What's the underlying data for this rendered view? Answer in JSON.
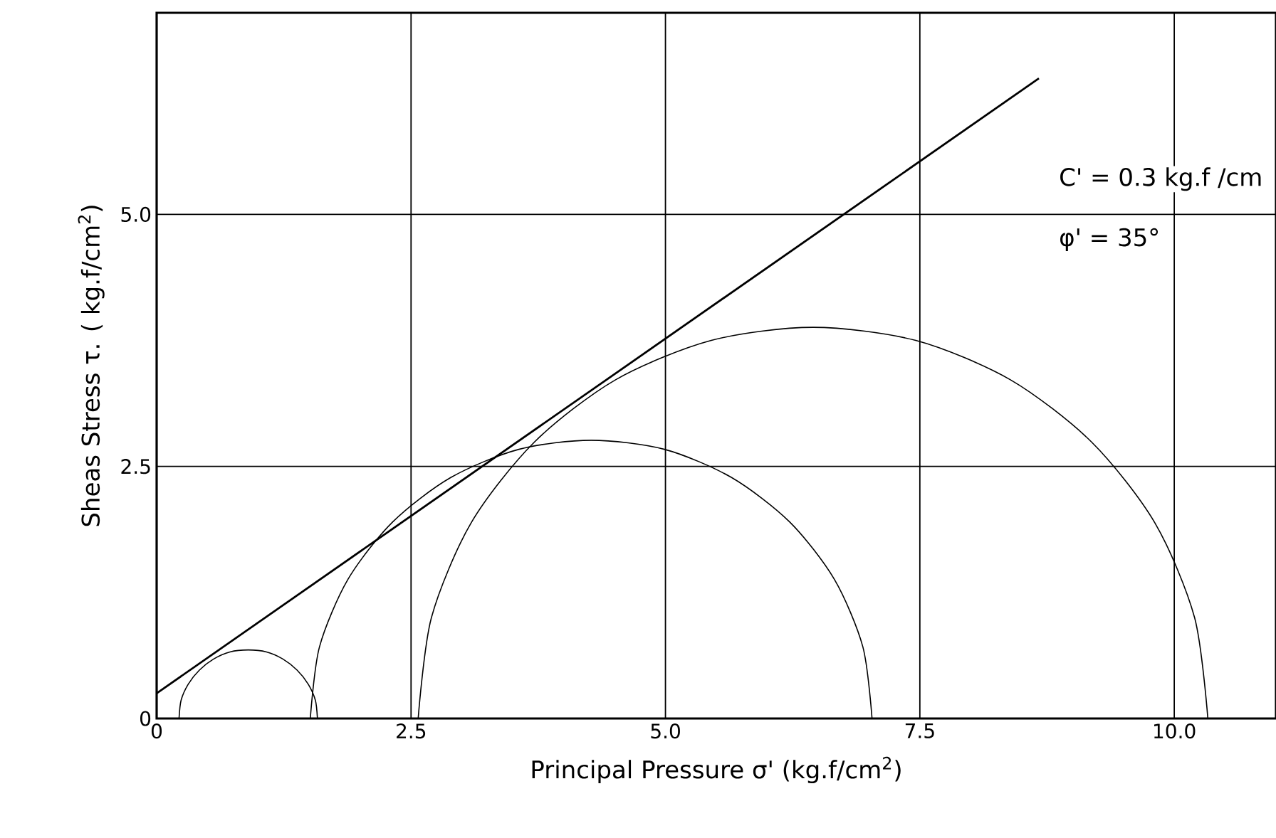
{
  "chart_data": {
    "type": "line",
    "xlabel": "Principal Pressure σ' (kg.f/cm$^{2}$)",
    "ylabel": "Sheas Stress  τ. ( kg.f/cm$^{2}$)",
    "xlim": [
      0,
      11
    ],
    "ylim": [
      0,
      7
    ],
    "xticks": [
      0,
      2.5,
      {
        "value": 5,
        "label": "5.0"
      },
      7.5,
      {
        "value": 10,
        "label": "10.0"
      }
    ],
    "yticks": [
      0,
      2.5,
      {
        "value": 5,
        "label": "5.0"
      }
    ],
    "grid": true,
    "marker": "none",
    "line_style": "solid",
    "annotations": [
      "C' = 0.3 kg.f /cm",
      "φ' = 35°"
    ],
    "series": [
      {
        "color": "#000000",
        "x": [
          0,
          8.67
        ],
        "values": [
          0.25,
          6.35
        ]
      },
      {
        "color": "#000000",
        "x": [
          1.58,
          1.56,
          1.49,
          1.38,
          1.24,
          1.08,
          0.9,
          0.72,
          0.56,
          0.42,
          0.31,
          0.24,
          0.22
        ],
        "values": [
          0,
          0.18,
          0.34,
          0.48,
          0.59,
          0.66,
          0.68,
          0.66,
          0.59,
          0.48,
          0.34,
          0.18,
          0
        ]
      },
      {
        "color": "#000000",
        "x": [
          7.03,
          6.94,
          6.66,
          6.22,
          5.65,
          4.99,
          4.27,
          3.56,
          2.89,
          2.32,
          1.88,
          1.6,
          1.51
        ],
        "values": [
          0,
          0.71,
          1.38,
          1.95,
          2.39,
          2.67,
          2.76,
          2.67,
          2.39,
          1.95,
          1.38,
          0.71,
          0
        ]
      },
      {
        "color": "#000000",
        "x": [
          10.33,
          10.2,
          9.81,
          9.19,
          8.39,
          7.46,
          6.45,
          5.45,
          4.51,
          3.71,
          3.09,
          2.7,
          2.57
        ],
        "values": [
          0,
          1.0,
          1.94,
          2.74,
          3.36,
          3.75,
          3.88,
          3.75,
          3.36,
          2.74,
          1.94,
          1.0,
          0
        ]
      }
    ]
  }
}
